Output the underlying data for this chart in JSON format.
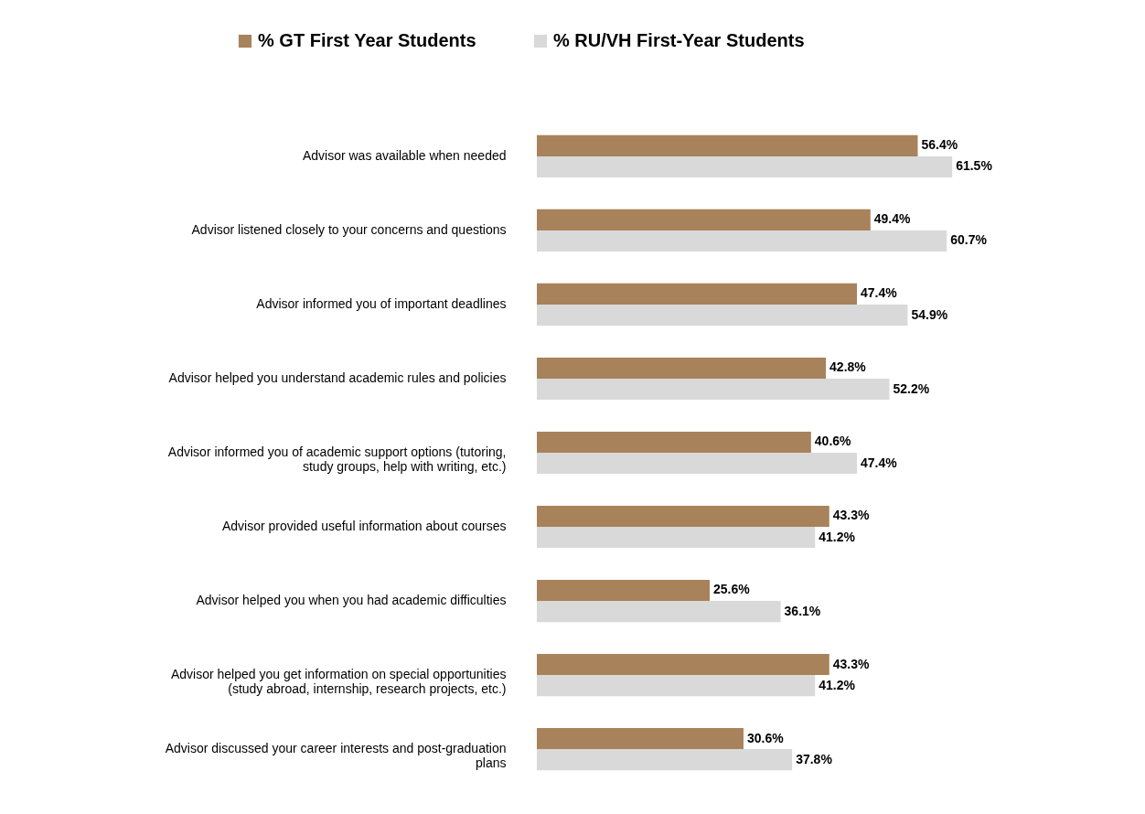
{
  "chart_data": {
    "type": "bar",
    "orientation": "horizontal",
    "categories": [
      "Advisor was available when needed",
      "Advisor listened closely to your concerns and questions",
      "Advisor informed you of important deadlines",
      "Advisor helped you understand academic rules and policies",
      "Advisor informed you of academic support options (tutoring, study groups, help with writing, etc.)",
      "Advisor provided useful information about courses",
      "Advisor helped you when you had academic difficulties",
      "Advisor helped you get information on special opportunities (study abroad, internship, research projects, etc.)",
      "Advisor discussed your career interests and post-graduation plans"
    ],
    "series": [
      {
        "name": "% GT First Year Students",
        "color": "#a8825a",
        "values": [
          56.4,
          49.4,
          47.4,
          42.8,
          40.6,
          43.3,
          25.6,
          43.3,
          30.6
        ],
        "value_labels": [
          "56.4%",
          "49.4%",
          "47.4%",
          "42.8%",
          "40.6%",
          "43.3%",
          "25.6%",
          "43.3%",
          "30.6%"
        ]
      },
      {
        "name": "% RU/VH First-Year Students",
        "color": "#d9d9d9",
        "values": [
          61.5,
          60.7,
          54.9,
          52.2,
          47.4,
          41.2,
          36.1,
          41.2,
          37.8
        ],
        "value_labels": [
          "61.5%",
          "60.7%",
          "54.9%",
          "52.2%",
          "47.4%",
          "41.2%",
          "36.1%",
          "41.2%",
          "37.8%"
        ]
      }
    ],
    "tick_labels": "y",
    "legend": "top"
  }
}
